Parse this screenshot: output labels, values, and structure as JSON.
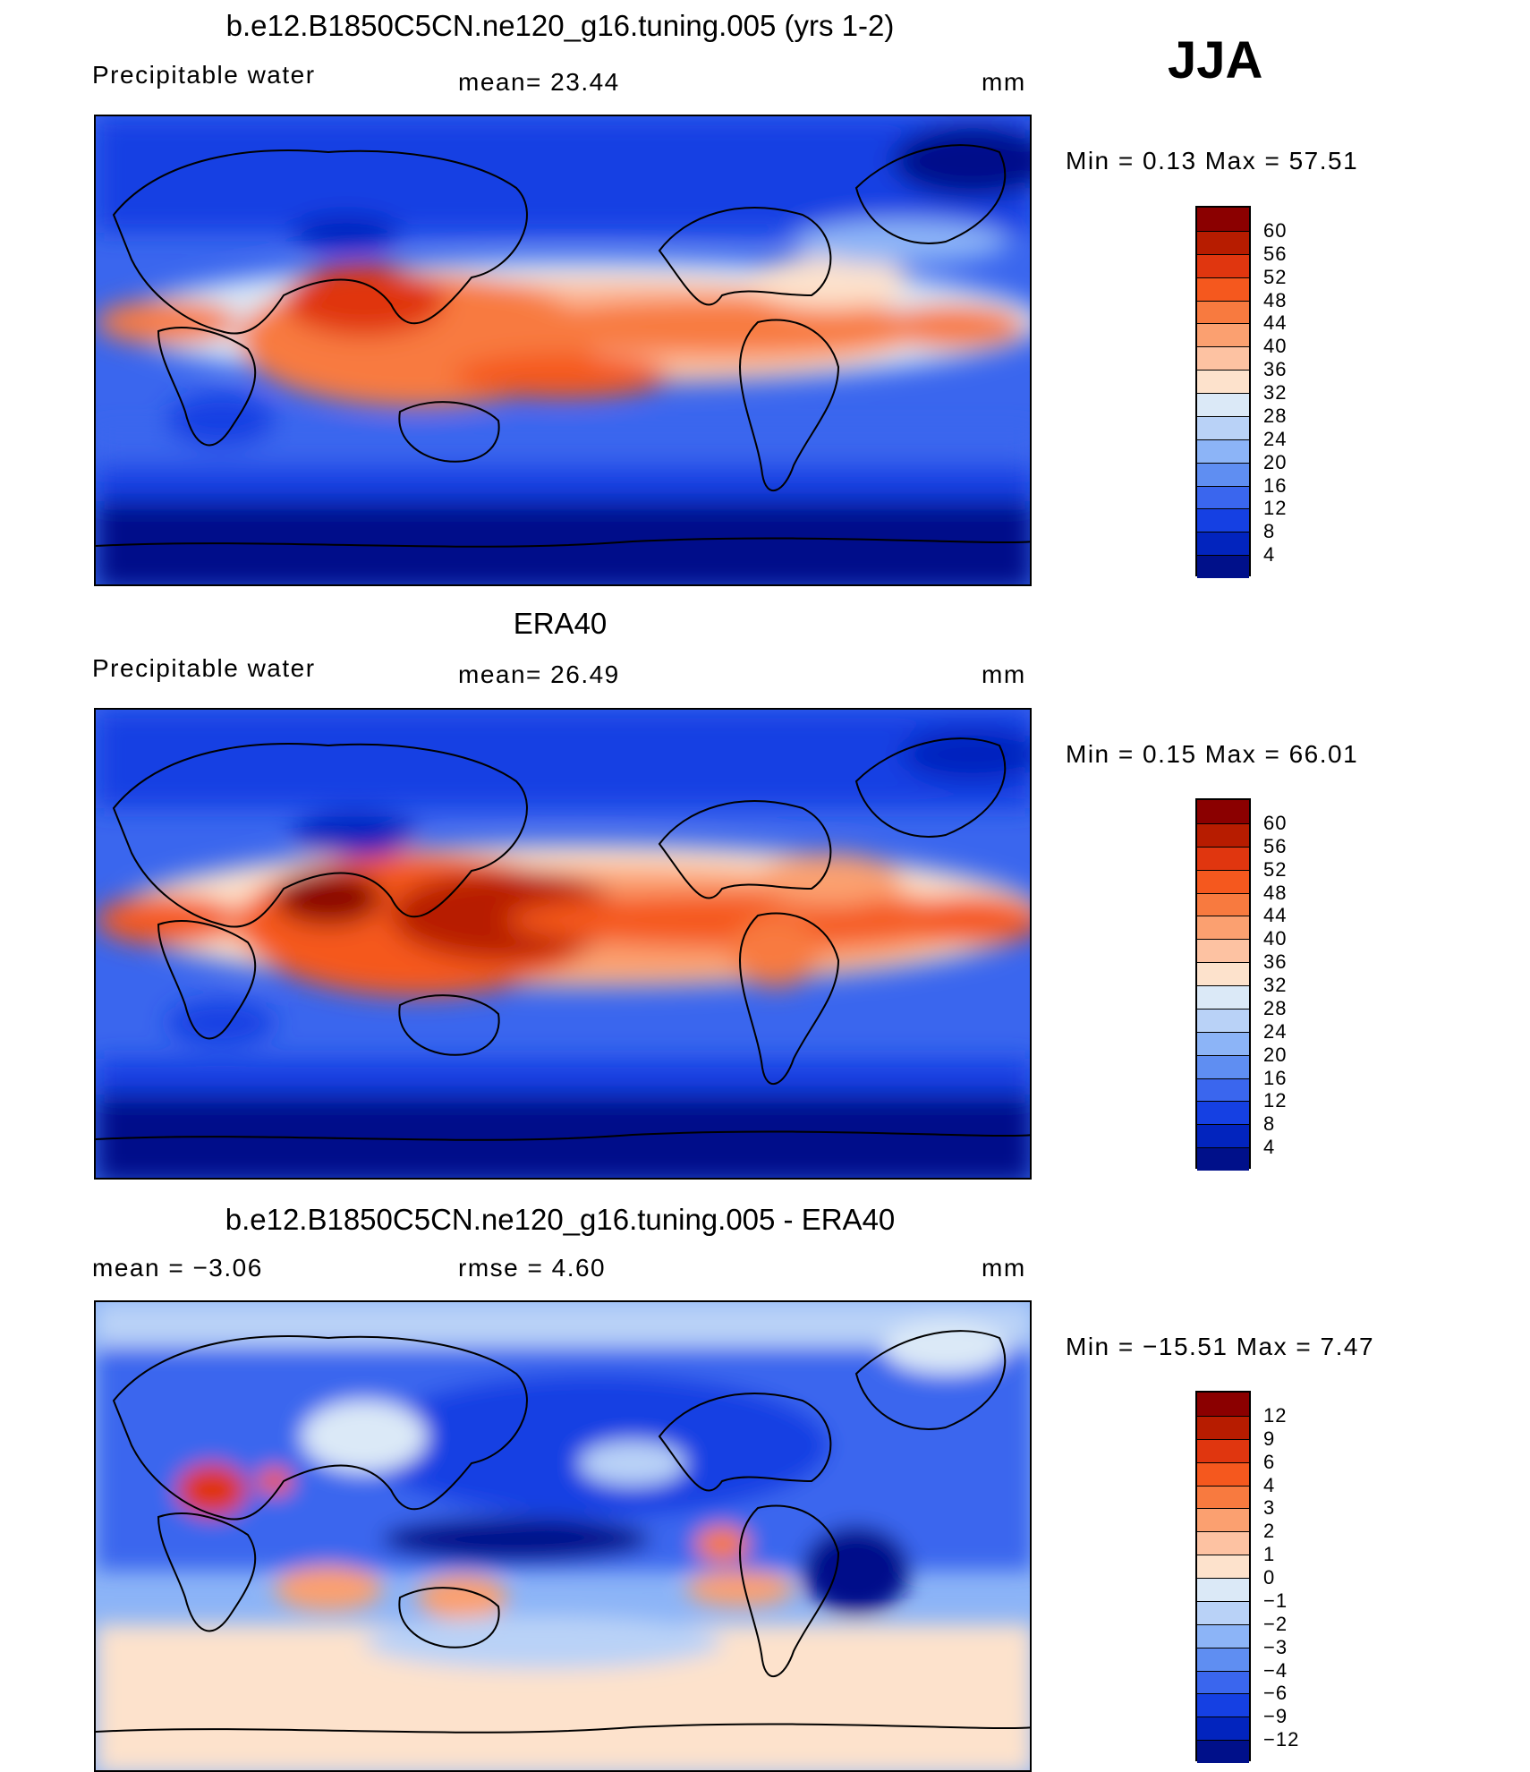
{
  "season_label": "JJA",
  "panels": [
    {
      "title": "b.e12.B1850C5CN.ne120_g16.tuning.005 (yrs 1-2)",
      "left_text": "Precipitable  water",
      "center_text": "mean=   23.44",
      "unit": "mm",
      "minmax": "Min  =     0.13  Max  =    57.51",
      "colorbar_labels": [
        "60",
        "56",
        "52",
        "48",
        "44",
        "40",
        "36",
        "32",
        "28",
        "24",
        "20",
        "16",
        "12",
        "8",
        "4"
      ],
      "colors": [
        "#8b0000",
        "#b71c00",
        "#e0360f",
        "#f5581e",
        "#f87a3f",
        "#fba070",
        "#fdc2a2",
        "#fde2cc",
        "#dbe9f7",
        "#b9d2f7",
        "#8cb4f7",
        "#5f8ef2",
        "#3a66ee",
        "#1540e3",
        "#0224be",
        "#00108a"
      ]
    },
    {
      "title": "ERA40",
      "left_text": "Precipitable  water",
      "center_text": "mean=   26.49",
      "unit": "mm",
      "minmax": "Min  =     0.15  Max  =    66.01",
      "colorbar_labels": [
        "60",
        "56",
        "52",
        "48",
        "44",
        "40",
        "36",
        "32",
        "28",
        "24",
        "20",
        "16",
        "12",
        "8",
        "4"
      ],
      "colors": [
        "#8b0000",
        "#b71c00",
        "#e0360f",
        "#f5581e",
        "#f87a3f",
        "#fba070",
        "#fdc2a2",
        "#fde2cc",
        "#dbe9f7",
        "#b9d2f7",
        "#8cb4f7",
        "#5f8ef2",
        "#3a66ee",
        "#1540e3",
        "#0224be",
        "#00108a"
      ]
    },
    {
      "title": "b.e12.B1850C5CN.ne120_g16.tuning.005 - ERA40",
      "left_text": "mean  =    −3.06",
      "center_text": "rmse  =     4.60",
      "unit": "mm",
      "minmax": "Min  = −15.51  Max  =     7.47",
      "colorbar_labels": [
        "12",
        "9",
        "6",
        "4",
        "3",
        "2",
        "1",
        "0",
        "−1",
        "−2",
        "−3",
        "−4",
        "−6",
        "−9",
        "−12"
      ],
      "colors": [
        "#8b0000",
        "#b71c00",
        "#e0360f",
        "#f5581e",
        "#f87a3f",
        "#fba070",
        "#fdc2a2",
        "#fde2cc",
        "#dbe9f7",
        "#b9d2f7",
        "#8cb4f7",
        "#5f8ef2",
        "#3a66ee",
        "#1540e3",
        "#0224be",
        "#00108a"
      ]
    }
  ]
}
